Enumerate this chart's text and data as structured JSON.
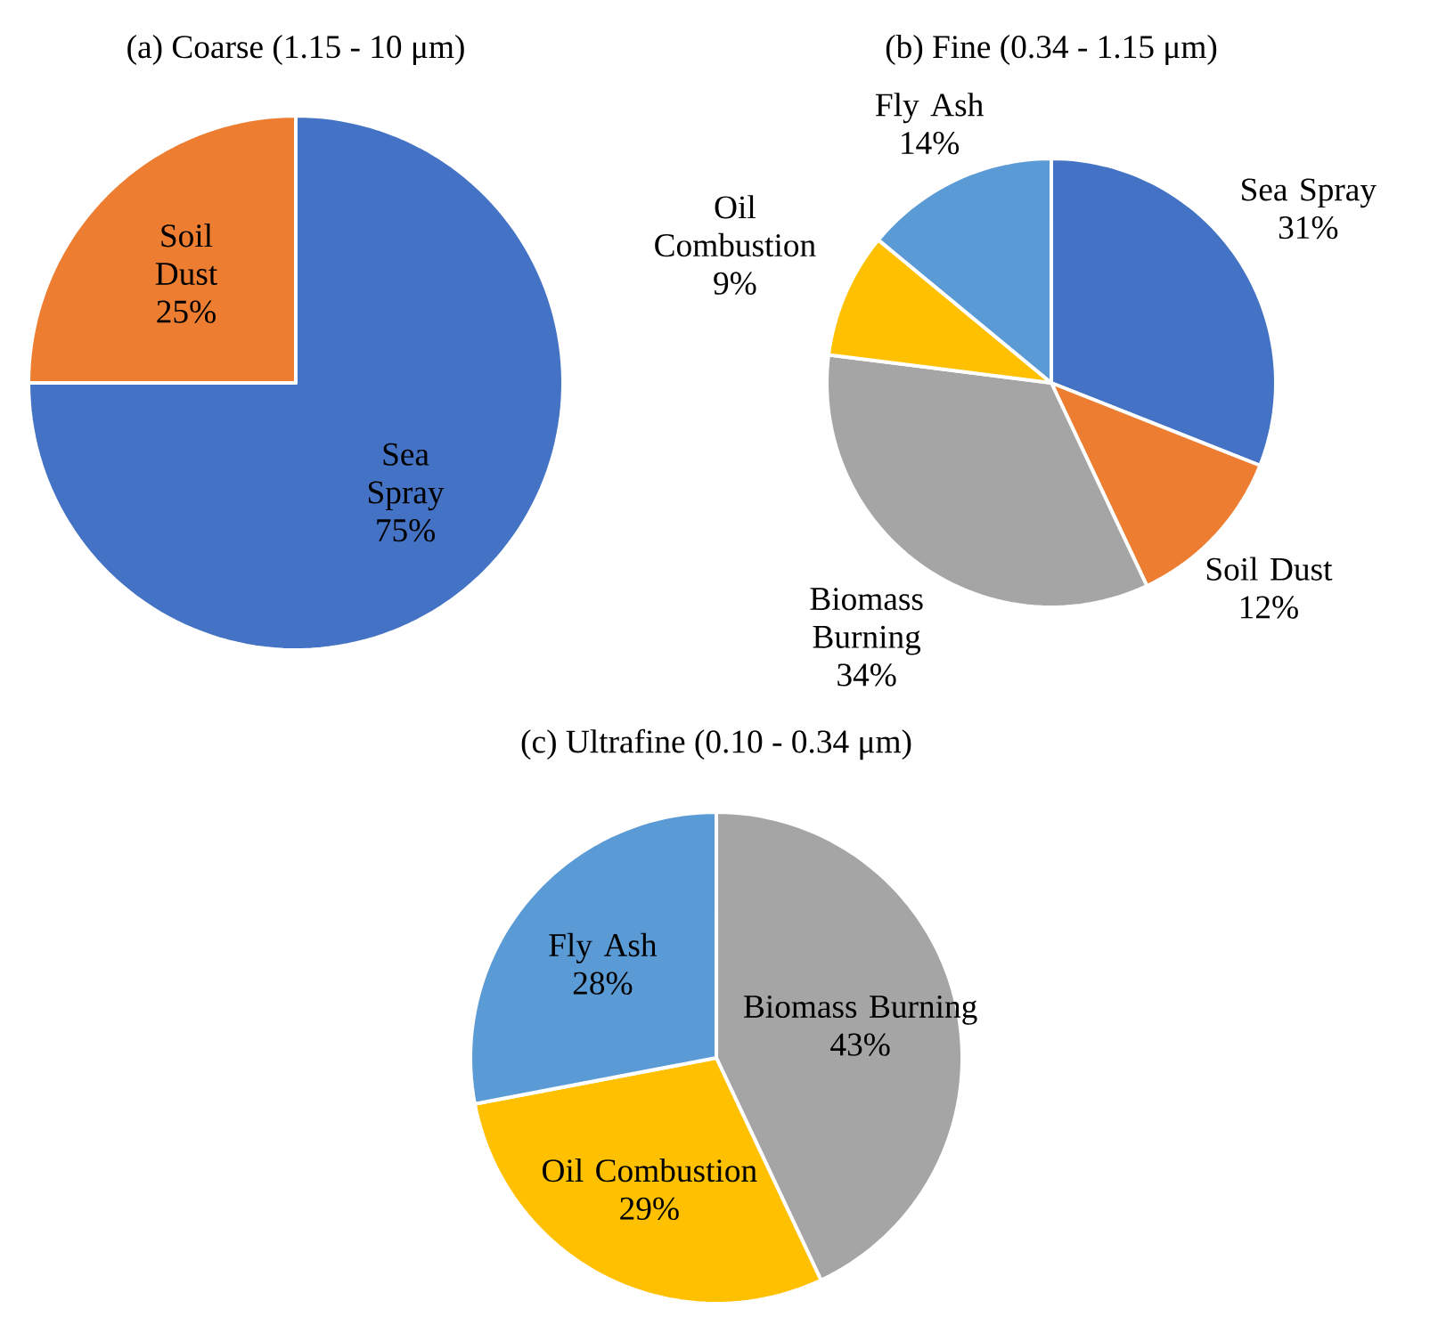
{
  "chart_data": [
    {
      "type": "pie",
      "title": "(a) Coarse (1.15 - 10 μm)",
      "categories": [
        "Sea Spray",
        "Soil Dust"
      ],
      "values": [
        75,
        25
      ],
      "colors": [
        "#4472c4",
        "#ed7d31"
      ],
      "value_labels": [
        "75%",
        "25%"
      ]
    },
    {
      "type": "pie",
      "title": "(b) Fine (0.34 - 1.15 μm)",
      "categories": [
        "Sea Spray",
        "Soil Dust",
        "Biomass Burning",
        "Oil Combustion",
        "Fly Ash"
      ],
      "values": [
        31,
        12,
        34,
        9,
        14
      ],
      "colors": [
        "#4472c4",
        "#ed7d31",
        "#a5a5a5",
        "#ffc000",
        "#5b9bd5"
      ],
      "value_labels": [
        "31%",
        "12%",
        "34%",
        "9%",
        "14%"
      ]
    },
    {
      "type": "pie",
      "title": "(c) Ultrafine (0.10 - 0.34 μm)",
      "categories": [
        "Biomass Burning",
        "Oil Combustion",
        "Fly Ash"
      ],
      "values": [
        43,
        29,
        28
      ],
      "colors": [
        "#a5a5a5",
        "#ffc000",
        "#5b9bd5"
      ],
      "value_labels": [
        "43%",
        "29%",
        "28%"
      ]
    }
  ]
}
